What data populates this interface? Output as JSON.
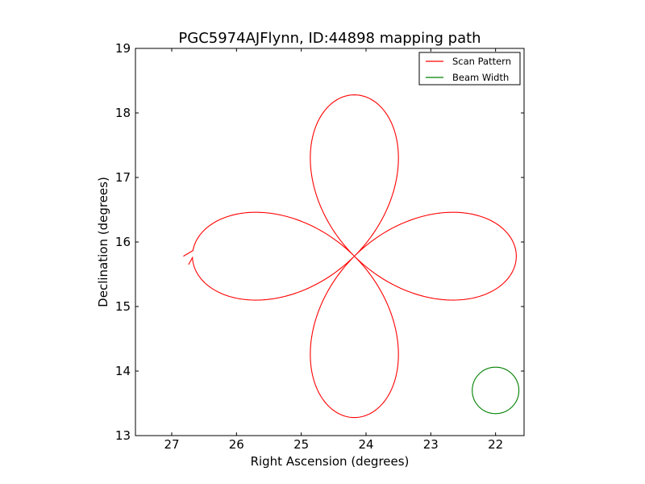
{
  "chart_data": {
    "type": "line",
    "title": "PGC5974AJFlynn, ID:44898 mapping path",
    "xlabel": "Right Ascension (degrees)",
    "ylabel": "Declination (degrees)",
    "xlim": [
      27.56,
      21.56
    ],
    "ylim": [
      13,
      19
    ],
    "x_inverted": true,
    "xticks": [
      27,
      26,
      25,
      24,
      23,
      22
    ],
    "xtick_labels": [
      "27",
      "26",
      "25",
      "24",
      "23",
      "22"
    ],
    "yticks": [
      13,
      14,
      15,
      16,
      17,
      18,
      19
    ],
    "ytick_labels": [
      "13",
      "14",
      "15",
      "16",
      "17",
      "18",
      "19"
    ],
    "grid": false,
    "legend_position": "top-right",
    "center": {
      "ra": 24.18,
      "dec": 15.78
    },
    "series": [
      {
        "name": "Scan Pattern",
        "color": "#ff0000",
        "shape": "four-petal rose (daisy scan)",
        "petal_reach_degrees": 2.5,
        "petal_half_width_degrees": 0.72,
        "gap_end": {
          "ra": 26.82,
          "dec": 15.78
        },
        "gap_start": {
          "ra": 26.74,
          "dec": 15.65
        }
      },
      {
        "name": "Beam Width",
        "color": "#008000",
        "shape": "circle",
        "center": {
          "ra": 22.0,
          "dec": 13.7
        },
        "radius_degrees": 0.36
      }
    ]
  }
}
